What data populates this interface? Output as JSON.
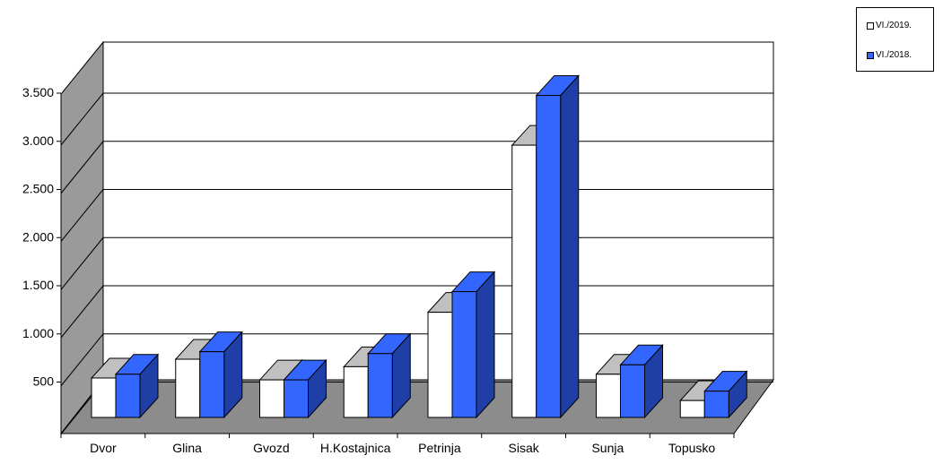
{
  "chart_data": {
    "type": "bar",
    "categories": [
      "Dvor",
      "Glina",
      "Gvozd",
      "H.Kostajnica",
      "Petrinja",
      "Sisak",
      "Sunja",
      "Topusko"
    ],
    "series": [
      {
        "name": "VI./2019.",
        "values": [
          420,
          620,
          400,
          540,
          1120,
          2900,
          460,
          180
        ],
        "color": "#ffffff"
      },
      {
        "name": "VI./2018.",
        "values": [
          460,
          700,
          400,
          680,
          1340,
          3430,
          560,
          280
        ],
        "color": "#3366ff"
      }
    ],
    "yticks": [
      "500",
      "1.000",
      "1.500",
      "2.000",
      "2.500",
      "3.000",
      "3.500"
    ],
    "ytick_values": [
      500,
      1000,
      1500,
      2000,
      2500,
      3000,
      3500
    ],
    "ylim": [
      0,
      4000
    ],
    "grid": true,
    "legend_position": "top-right",
    "colors": {
      "wall": "#ffffff",
      "side_wall": "#9a9a9a",
      "floor": "#8c8c8c",
      "bar_top_white": "#c0c0c0",
      "bar_side_blue": "#1f3fa6"
    }
  }
}
